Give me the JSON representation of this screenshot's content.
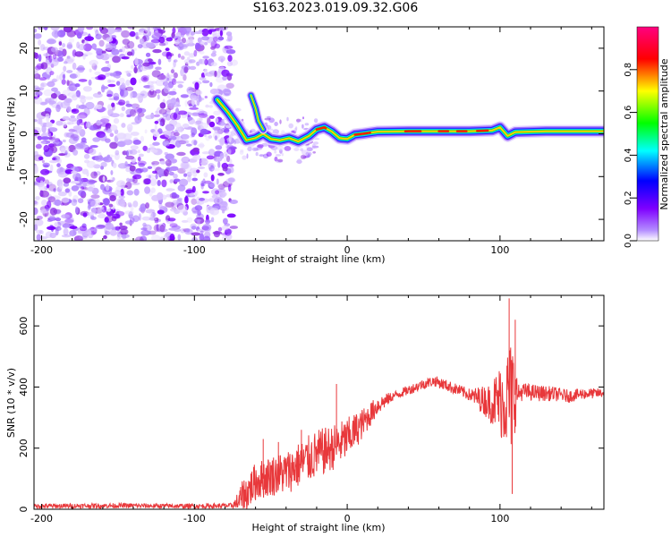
{
  "title": "S163.2023.019.09.32.G06",
  "colors": {
    "snr_line": "#e8383b",
    "background_speckle": "#8a2be2",
    "axis": "#000000"
  },
  "chart_data": [
    {
      "type": "heatmap",
      "title": "",
      "xlabel": "Height of straight line (km)",
      "ylabel": "Frequency (Hz)",
      "xlim": [
        -205,
        168
      ],
      "ylim": [
        -25,
        25
      ],
      "x_ticks": [
        -200,
        -100,
        0,
        100
      ],
      "y_ticks": [
        -20,
        -10,
        0,
        10,
        20
      ],
      "colorbar": {
        "label": "Normalized spectral amplitude",
        "range": [
          0,
          1
        ],
        "ticks": [
          "0.0",
          "0.2",
          "0.4",
          "0.6",
          "0.8"
        ],
        "tick_values": [
          0.0,
          0.2,
          0.4,
          0.6,
          0.8
        ],
        "colormap": "rainbow (white-violet-blue-cyan-green-yellow-red-magenta)"
      },
      "noise_region_xmax": -80,
      "ridge": [
        {
          "x": -85,
          "f": 8
        },
        {
          "x": -78,
          "f": 5
        },
        {
          "x": -72,
          "f": 2
        },
        {
          "x": -66,
          "f": -1.5
        },
        {
          "x": -60,
          "f": -1
        },
        {
          "x": -55,
          "f": 0
        },
        {
          "x": -50,
          "f": -1.2
        },
        {
          "x": -44,
          "f": -1.5
        },
        {
          "x": -38,
          "f": -1.0
        },
        {
          "x": -32,
          "f": -1.8
        },
        {
          "x": -25,
          "f": -0.5
        },
        {
          "x": -20,
          "f": 1.0
        },
        {
          "x": -15,
          "f": 1.5
        },
        {
          "x": -10,
          "f": 0.5
        },
        {
          "x": -5,
          "f": -1.0
        },
        {
          "x": 0,
          "f": -1.2
        },
        {
          "x": 5,
          "f": -0.2
        },
        {
          "x": 10,
          "f": 0.0
        },
        {
          "x": 20,
          "f": 0.5
        },
        {
          "x": 40,
          "f": 0.6
        },
        {
          "x": 60,
          "f": 0.6
        },
        {
          "x": 80,
          "f": 0.6
        },
        {
          "x": 95,
          "f": 0.8
        },
        {
          "x": 100,
          "f": 1.5
        },
        {
          "x": 105,
          "f": -0.5
        },
        {
          "x": 110,
          "f": 0.4
        },
        {
          "x": 130,
          "f": 0.6
        },
        {
          "x": 168,
          "f": 0.6
        }
      ],
      "side_branch": [
        {
          "x": -63,
          "f": 9
        },
        {
          "x": -60,
          "f": 6
        },
        {
          "x": -58,
          "f": 3
        },
        {
          "x": -55,
          "f": 1
        }
      ]
    },
    {
      "type": "line",
      "title": "",
      "xlabel": "Height of straight line (km)",
      "ylabel": "SNR (10 * v/v)",
      "xlim": [
        -205,
        168
      ],
      "ylim": [
        0,
        700
      ],
      "x_ticks": [
        -200,
        -100,
        0,
        100
      ],
      "y_ticks": [
        0,
        200,
        400,
        600
      ],
      "series": [
        {
          "values_trend": [
            {
              "x": -205,
              "y": 10
            },
            {
              "x": -150,
              "y": 12
            },
            {
              "x": -100,
              "y": 10
            },
            {
              "x": -75,
              "y": 12
            },
            {
              "x": -68,
              "y": 40
            },
            {
              "x": -60,
              "y": 90
            },
            {
              "x": -50,
              "y": 110
            },
            {
              "x": -40,
              "y": 120
            },
            {
              "x": -30,
              "y": 150
            },
            {
              "x": -20,
              "y": 180
            },
            {
              "x": -10,
              "y": 200
            },
            {
              "x": 0,
              "y": 230
            },
            {
              "x": 10,
              "y": 280
            },
            {
              "x": 20,
              "y": 340
            },
            {
              "x": 30,
              "y": 370
            },
            {
              "x": 40,
              "y": 390
            },
            {
              "x": 50,
              "y": 410
            },
            {
              "x": 57,
              "y": 420
            },
            {
              "x": 65,
              "y": 405
            },
            {
              "x": 75,
              "y": 385
            },
            {
              "x": 85,
              "y": 365
            },
            {
              "x": 93,
              "y": 350
            },
            {
              "x": 100,
              "y": 355
            },
            {
              "x": 108,
              "y": 370
            },
            {
              "x": 115,
              "y": 385
            },
            {
              "x": 125,
              "y": 380
            },
            {
              "x": 135,
              "y": 378
            },
            {
              "x": 145,
              "y": 370
            },
            {
              "x": 155,
              "y": 378
            },
            {
              "x": 168,
              "y": 380
            }
          ],
          "noise_amplitude": [
            {
              "x": -205,
              "y": 8
            },
            {
              "x": -75,
              "y": 8
            },
            {
              "x": -68,
              "y": 60
            },
            {
              "x": -20,
              "y": 80
            },
            {
              "x": 0,
              "y": 70
            },
            {
              "x": 15,
              "y": 40
            },
            {
              "x": 30,
              "y": 15
            },
            {
              "x": 80,
              "y": 20
            },
            {
              "x": 93,
              "y": 60
            },
            {
              "x": 100,
              "y": 120
            },
            {
              "x": 108,
              "y": 200
            },
            {
              "x": 112,
              "y": 30
            },
            {
              "x": 168,
              "y": 15
            }
          ],
          "spikes": [
            {
              "x": -55,
              "y": 230
            },
            {
              "x": -45,
              "y": 220
            },
            {
              "x": -30,
              "y": 260
            },
            {
              "x": -7,
              "y": 410
            },
            {
              "x": 106,
              "y": 690
            },
            {
              "x": 108,
              "y": 50
            },
            {
              "x": 110,
              "y": 620
            }
          ]
        }
      ]
    }
  ]
}
